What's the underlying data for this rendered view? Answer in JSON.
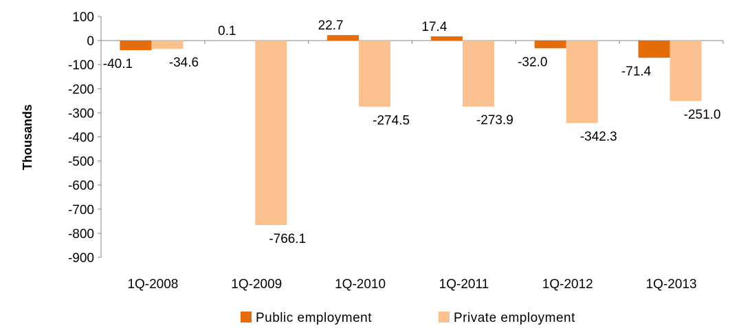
{
  "chart_data": {
    "type": "bar",
    "ylabel": "Thousands",
    "xlabel": "",
    "ylim": [
      -900,
      100
    ],
    "yticks": [
      100,
      0,
      -100,
      -200,
      -300,
      -400,
      -500,
      -600,
      -700,
      -800,
      -900
    ],
    "categories": [
      "1Q-2008",
      "1Q-2009",
      "1Q-2010",
      "1Q-2011",
      "1Q-2012",
      "1Q-2013"
    ],
    "series": [
      {
        "name": "Public employment",
        "color": "#E46C0A",
        "values": [
          -40.1,
          0.1,
          22.7,
          17.4,
          -32.0,
          -71.4
        ]
      },
      {
        "name": "Private employment",
        "color": "#FAC090",
        "values": [
          -34.6,
          -766.1,
          -274.5,
          -273.9,
          -342.3,
          -251.0
        ]
      }
    ],
    "legend_position": "bottom",
    "grid": false
  }
}
